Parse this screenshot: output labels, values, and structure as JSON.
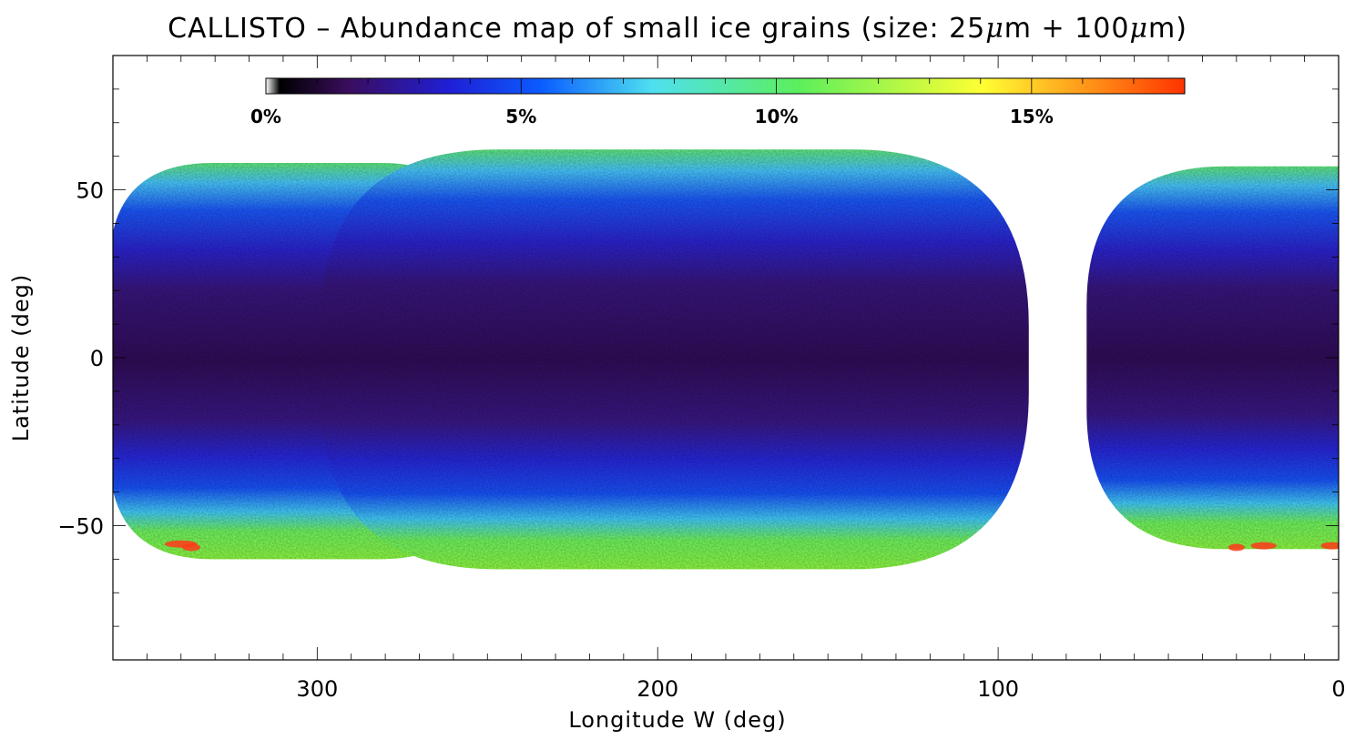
{
  "figure": {
    "title_prefix": "CALLISTO – Abundance map of small ice grains (size: 25",
    "title_mu": "μ",
    "title_mid": "m + 100",
    "title_end": "m)",
    "xlabel": "Longitude W (deg)",
    "ylabel": "Latitude (deg)"
  },
  "chart_data": {
    "type": "heatmap",
    "x_axis": {
      "label": "Longitude W (deg)",
      "range": [
        360,
        0
      ],
      "reversed": true,
      "ticks": [
        300,
        200,
        100,
        0
      ],
      "tick_labels": [
        "300",
        "200",
        "100",
        "0"
      ]
    },
    "y_axis": {
      "label": "Latitude (deg)",
      "range": [
        -90,
        90
      ],
      "ticks": [
        50,
        0,
        -50
      ],
      "tick_labels": [
        "50",
        "0",
        "−50"
      ]
    },
    "colorbar": {
      "range_percent": [
        0,
        18
      ],
      "tick_values": [
        0,
        5,
        10,
        15
      ],
      "tick_labels": [
        "0%",
        "5%",
        "10%",
        "15%"
      ],
      "colormap": [
        "#ffffff",
        "#000000",
        "#3a0d5e",
        "#1f1fd6",
        "#0a5cff",
        "#4ee0f0",
        "#5cef5c",
        "#ffff33",
        "#ff3300"
      ]
    },
    "coverage_regions": [
      {
        "name": "west lobe",
        "lon_center": 306,
        "lon_halfwidth": 55,
        "lat_top": 58,
        "lat_bottom": -60
      },
      {
        "name": "central lobe",
        "lon_center": 195,
        "lon_halfwidth": 104,
        "lat_top": 62,
        "lat_bottom": -63
      },
      {
        "name": "east lobe",
        "lon_center": 0,
        "lon_halfwidth": 74,
        "lat_top": 57,
        "lat_bottom": -57
      }
    ],
    "abundance_by_zone_percent": [
      {
        "zone": "equatorial",
        "lat_range": [
          -25,
          25
        ],
        "value": 2
      },
      {
        "zone": "mid-latitude",
        "lat_range": [
          25,
          45
        ],
        "value": 4.5
      },
      {
        "zone": "high-latitude north",
        "lat_range": [
          45,
          60
        ],
        "value": 7
      },
      {
        "zone": "high-latitude south",
        "lat_range": [
          -60,
          -45
        ],
        "value": 9
      },
      {
        "zone": "south polar hot spots",
        "lat_range": [
          -58,
          -52
        ],
        "value": 17
      }
    ]
  }
}
